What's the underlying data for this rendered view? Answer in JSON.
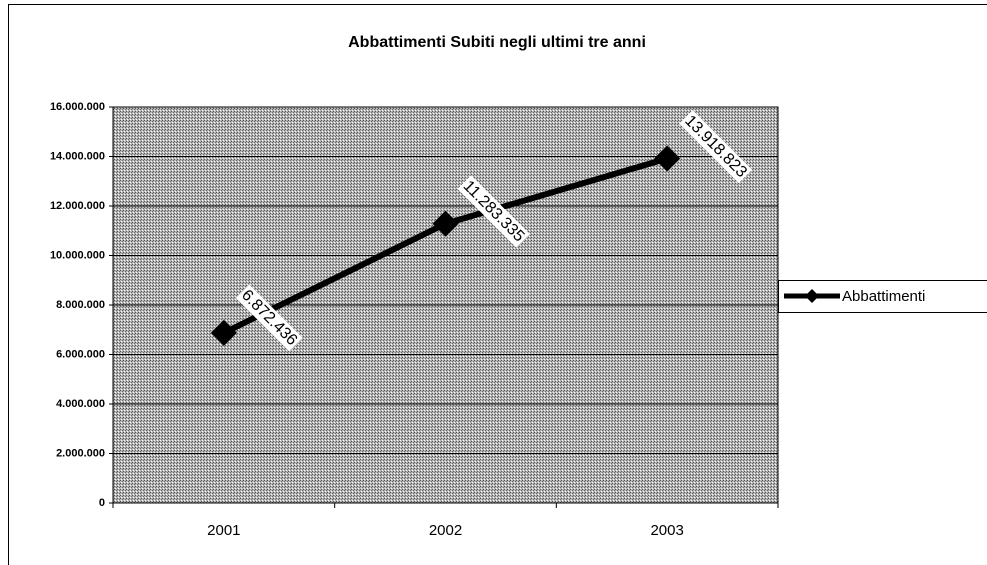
{
  "chart_data": {
    "type": "line",
    "title": "Abbattimenti Subiti negli ultimi tre anni",
    "categories": [
      "2001",
      "2002",
      "2003"
    ],
    "series": [
      {
        "name": "Abbattimenti",
        "color": "#000000",
        "values": [
          6872436,
          11283335,
          13918823
        ],
        "value_labels": [
          "6.872.436",
          "11.283.335",
          "13.918.823"
        ]
      }
    ],
    "ylim": [
      0,
      16000000
    ],
    "yticks": [
      0,
      {
        "value": 2000000,
        "label": "2.000.000"
      },
      {
        "value": 4000000,
        "label": "4.000.000"
      },
      {
        "value": 6000000,
        "label": "6.000.000"
      },
      {
        "value": 8000000,
        "label": "8.000.000"
      },
      {
        "value": 10000000,
        "label": "10.000.000"
      },
      {
        "value": 12000000,
        "label": "12.000.000"
      },
      {
        "value": 14000000,
        "label": "14.000.000"
      },
      {
        "value": 16000000,
        "label": "16.000.000"
      }
    ],
    "grid": true,
    "legend": "right"
  }
}
